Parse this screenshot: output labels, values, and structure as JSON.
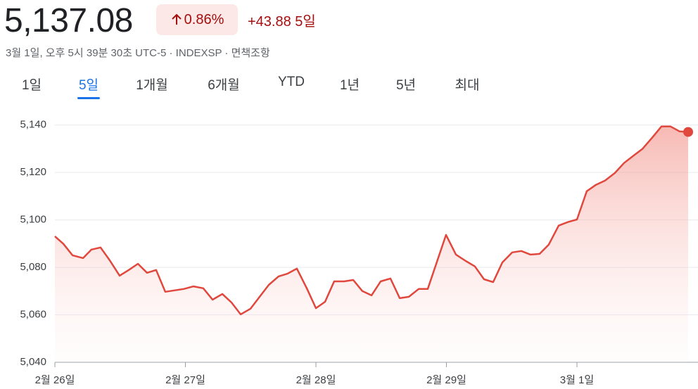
{
  "header": {
    "price": "5,137.08",
    "change_pct": "0.86%",
    "change": "+43.88",
    "period": "5일",
    "subtitle": "3월 1일, 오후 5시 39분 30초 UTC-5 · INDEXSP · 면책조항"
  },
  "tabs": {
    "items": [
      "1일",
      "5일",
      "1개월",
      "6개월",
      "YTD",
      "1년",
      "5년",
      "최대"
    ],
    "selected": 1
  },
  "chart_data": {
    "type": "area",
    "x": [
      0,
      0.065,
      0.135,
      0.216,
      0.28,
      0.35,
      0.42,
      0.496,
      0.566,
      0.636,
      0.706,
      0.776,
      0.846,
      0.916,
      0.987,
      1.062,
      1.137,
      1.208,
      1.283,
      1.353,
      1.423,
      1.499,
      1.569,
      1.639,
      1.714,
      1.784,
      1.854,
      1.93,
      2.0,
      2.07,
      2.14,
      2.216,
      2.286,
      2.356,
      2.426,
      2.496,
      2.571,
      2.642,
      2.712,
      2.787,
      2.857,
      2.997,
      3.073,
      3.148,
      3.218,
      3.288,
      3.358,
      3.429,
      3.504,
      3.574,
      3.644,
      3.714,
      3.784,
      3.86,
      3.93,
      4.0,
      4.075,
      4.146,
      4.216,
      4.291,
      4.361,
      4.431,
      4.501,
      4.577,
      4.647,
      4.717,
      4.787,
      4.852
    ],
    "series": [
      {
        "color": "#e0483e",
        "values": [
          5093.1,
          5089.9,
          5085.1,
          5083.9,
          5087.5,
          5088.4,
          5083.0,
          5076.5,
          5078.9,
          5081.5,
          5077.7,
          5078.9,
          5069.7,
          5070.3,
          5070.9,
          5072.0,
          5071.2,
          5066.4,
          5068.8,
          5065.2,
          5060.2,
          5062.6,
          5067.6,
          5072.6,
          5076.2,
          5077.4,
          5079.5,
          5071.2,
          5062.8,
          5065.5,
          5074.1,
          5074.1,
          5074.7,
          5070.0,
          5068.2,
          5074.1,
          5075.3,
          5067.0,
          5067.6,
          5070.9,
          5070.9,
          5093.7,
          5085.4,
          5082.7,
          5080.4,
          5075.0,
          5073.8,
          5082.1,
          5086.3,
          5086.9,
          5085.4,
          5085.7,
          5089.6,
          5097.6,
          5099.1,
          5100.2,
          5112.1,
          5114.8,
          5116.6,
          5119.8,
          5124.0,
          5127.0,
          5129.9,
          5134.7,
          5139.4,
          5139.4,
          5137.3,
          5137.08
        ]
      }
    ],
    "xlim": [
      0,
      4.852
    ],
    "xticks": [
      {
        "value": 0,
        "label": "2월 26일"
      },
      {
        "value": 1,
        "label": "2월 27일"
      },
      {
        "value": 2,
        "label": "2월 28일"
      },
      {
        "value": 3,
        "label": "2월 29일"
      },
      {
        "value": 4,
        "label": "3월 1일"
      }
    ],
    "ylim": [
      5040,
      5150
    ],
    "yticks": [
      {
        "value": 5040,
        "label": "5,040"
      },
      {
        "value": 5060,
        "label": "5,060"
      },
      {
        "value": 5080,
        "label": "5,080"
      },
      {
        "value": 5100,
        "label": "5,100"
      },
      {
        "value": 5120,
        "label": "5,120"
      },
      {
        "value": 5140,
        "label": "5,140"
      }
    ],
    "grid": true
  }
}
